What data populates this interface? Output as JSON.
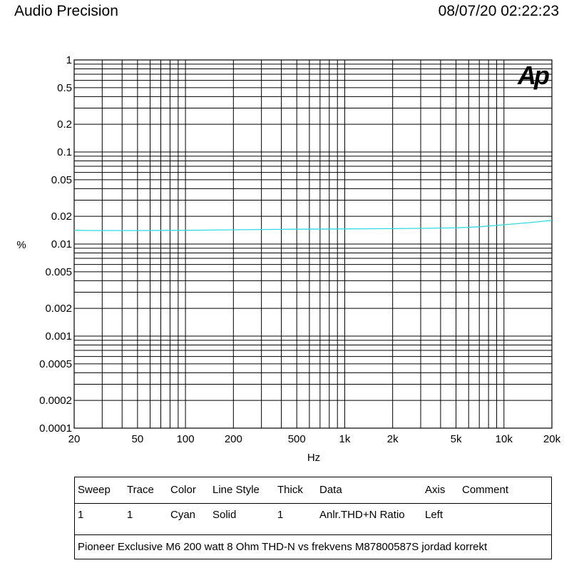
{
  "header": {
    "title": "Audio Precision",
    "timestamp": "08/07/20 02:22:23"
  },
  "logo": {
    "text": "Ap",
    "color": "#1a2ee0"
  },
  "chart_data": {
    "type": "line",
    "x_scale": "log",
    "y_scale": "log",
    "xlim": [
      20,
      20000
    ],
    "ylim": [
      0.0001,
      1
    ],
    "xlabel": "Hz",
    "ylabel": "%",
    "grid": true,
    "x_ticks": [
      {
        "v": 20,
        "label": "20"
      },
      {
        "v": 50,
        "label": "50"
      },
      {
        "v": 100,
        "label": "100"
      },
      {
        "v": 200,
        "label": "200"
      },
      {
        "v": 500,
        "label": "500"
      },
      {
        "v": 1000,
        "label": "1k"
      },
      {
        "v": 2000,
        "label": "2k"
      },
      {
        "v": 5000,
        "label": "5k"
      },
      {
        "v": 10000,
        "label": "10k"
      },
      {
        "v": 20000,
        "label": "20k"
      }
    ],
    "y_ticks": [
      {
        "v": 1,
        "label": "1"
      },
      {
        "v": 0.5,
        "label": "0.5"
      },
      {
        "v": 0.2,
        "label": "0.2"
      },
      {
        "v": 0.1,
        "label": "0.1"
      },
      {
        "v": 0.05,
        "label": "0.05"
      },
      {
        "v": 0.02,
        "label": "0.02"
      },
      {
        "v": 0.01,
        "label": "0.01"
      },
      {
        "v": 0.005,
        "label": "0.005"
      },
      {
        "v": 0.002,
        "label": "0.002"
      },
      {
        "v": 0.001,
        "label": "0.001"
      },
      {
        "v": 0.0005,
        "label": "0.0005"
      },
      {
        "v": 0.0002,
        "label": "0.0002"
      },
      {
        "v": 0.0001,
        "label": "0.0001"
      }
    ],
    "series": [
      {
        "color": "#33d9e6",
        "x": [
          20,
          30,
          50,
          80,
          100,
          150,
          200,
          300,
          500,
          1000,
          2000,
          3000,
          5000,
          7000,
          10000,
          15000,
          20000
        ],
        "y": [
          0.0141,
          0.014,
          0.014,
          0.0141,
          0.0141,
          0.0142,
          0.0143,
          0.0144,
          0.0145,
          0.0146,
          0.0147,
          0.0148,
          0.015,
          0.0154,
          0.0162,
          0.0172,
          0.0181
        ]
      }
    ]
  },
  "legend_table": {
    "headers": [
      "Sweep",
      "Trace",
      "Color",
      "Line Style",
      "Thick",
      "Data",
      "Axis",
      "Comment"
    ],
    "row": [
      "1",
      "1",
      "Cyan",
      "Solid",
      "1",
      "Anlr.THD+N Ratio",
      "Left",
      ""
    ],
    "comment": "Pioneer Exclusive M6 200 watt 8 Ohm THD-N vs frekvens M87800587S jordad korrekt"
  }
}
